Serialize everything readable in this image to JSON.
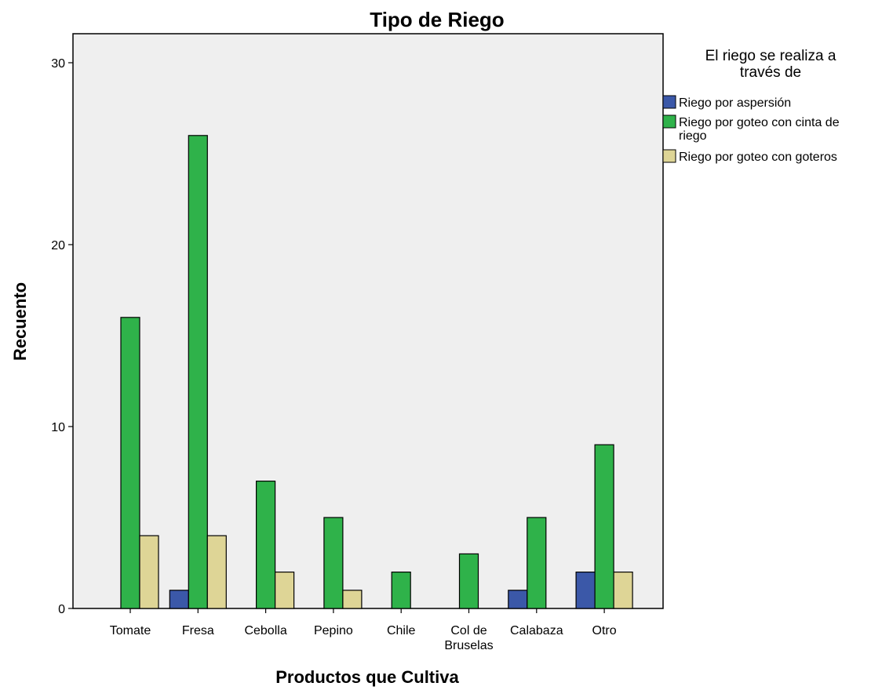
{
  "chart_data": {
    "type": "bar",
    "title": "Tipo de Riego",
    "xlabel": "Productos que Cultiva",
    "ylabel": "Recuento",
    "categories": [
      "Tomate",
      "Fresa",
      "Cebolla",
      "Pepino",
      "Chile",
      "Col de Bruselas",
      "Calabaza",
      "Otro"
    ],
    "category_label_lines": [
      [
        "Tomate"
      ],
      [
        "Fresa"
      ],
      [
        "Cebolla"
      ],
      [
        "Pepino"
      ],
      [
        "Chile"
      ],
      [
        "Col de",
        "Bruselas"
      ],
      [
        "Calabaza"
      ],
      [
        "Otro"
      ]
    ],
    "series": [
      {
        "name": "Riego por aspersión",
        "color": "#3b58a8",
        "values": [
          0,
          1,
          0,
          0,
          0,
          0,
          1,
          2
        ]
      },
      {
        "name": "Riego por goteo con cinta de riego",
        "color": "#2fb24a",
        "values": [
          16,
          26,
          7,
          5,
          2,
          3,
          5,
          9
        ]
      },
      {
        "name": "Riego por goteo con goteros",
        "color": "#ded596",
        "values": [
          4,
          4,
          2,
          1,
          0,
          0,
          0,
          2
        ]
      }
    ],
    "legend": {
      "title_lines": [
        "El riego se realiza a",
        "través de"
      ],
      "entries": [
        {
          "lines": [
            "Riego por aspersión"
          ]
        },
        {
          "lines": [
            "Riego por goteo con cinta de",
            "riego"
          ]
        },
        {
          "lines": [
            "Riego por goteo con goteros"
          ]
        }
      ],
      "placement": "right"
    },
    "yticks": [
      0,
      10,
      20,
      30
    ],
    "ylim": [
      0,
      32
    ],
    "grid": false,
    "plot_background": "#efefef"
  }
}
